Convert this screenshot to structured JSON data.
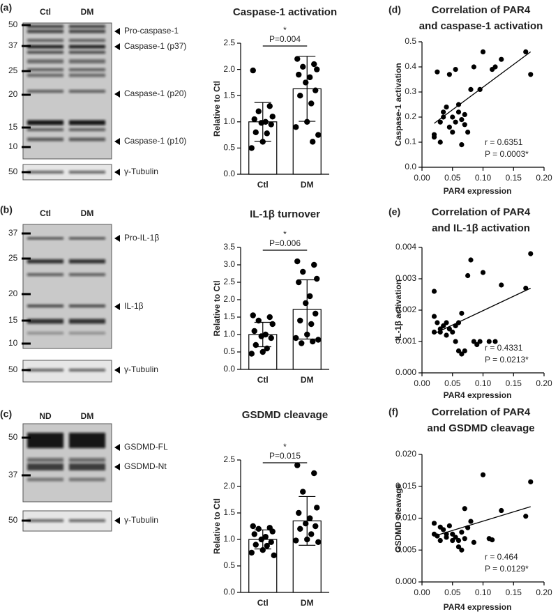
{
  "blots": [
    {
      "panel": "(a)",
      "lanes": [
        "Ctl",
        "DM"
      ],
      "markers": [
        50,
        37,
        25,
        20,
        15,
        10
      ],
      "bands": [
        "Pro-caspase-1",
        "Caspase-1 (p37)",
        "Caspase-1 (p20)",
        "Caspase-1 (p10)"
      ],
      "loading_marker": 50,
      "loading_control": "γ-Tubulin"
    },
    {
      "panel": "(b)",
      "lanes": [
        "Ctl",
        "DM"
      ],
      "markers": [
        37,
        25,
        20,
        15,
        10
      ],
      "bands": [
        "Pro-IL-1β",
        "IL-1β"
      ],
      "loading_marker": 50,
      "loading_control": "γ-Tubulin"
    },
    {
      "panel": "(c)",
      "lanes": [
        "ND",
        "DM"
      ],
      "markers": [
        50,
        37
      ],
      "bands": [
        "GSDMD-FL",
        "GSDMD-Nt"
      ],
      "loading_marker": 50,
      "loading_control": "γ-Tubulin"
    }
  ],
  "chart_data": [
    {
      "type": "bar",
      "title": "Caspase-1 activation",
      "y_label": "Relative to Ctl",
      "categories": [
        "Ctl",
        "DM"
      ],
      "values": [
        1.0,
        1.63
      ],
      "errors": [
        0.37,
        0.62
      ],
      "points": [
        [
          1.98,
          1.3,
          1.2,
          1.1,
          1.05,
          1.0,
          0.98,
          0.95,
          0.8,
          0.78,
          0.62,
          0.5
        ],
        [
          2.2,
          2.1,
          2.05,
          2.0,
          1.9,
          1.85,
          1.75,
          1.6,
          1.5,
          1.35,
          1.0,
          0.9,
          0.75,
          0.62
        ]
      ],
      "significance": "*",
      "p_label": "P=0.004",
      "color": "#ffffff",
      "ylim": [
        0,
        2.5
      ],
      "yticks": [
        {
          "value": 0,
          "label": "0.0"
        },
        0.5,
        {
          "value": 1,
          "label": "1.0"
        },
        1.5,
        {
          "value": 2,
          "label": "2.0"
        },
        2.5
      ]
    },
    {
      "type": "bar",
      "title": "IL-1β turnover",
      "y_label": "Relative to Ctl",
      "categories": [
        "Ctl",
        "DM"
      ],
      "values": [
        1.0,
        1.72
      ],
      "errors": [
        0.35,
        0.85
      ],
      "points": [
        [
          1.55,
          1.5,
          1.4,
          1.3,
          1.1,
          1.0,
          0.95,
          0.9,
          0.7,
          0.6,
          0.5,
          0.45
        ],
        [
          3.1,
          3.0,
          2.8,
          2.6,
          2.5,
          2.1,
          1.9,
          1.6,
          1.4,
          1.3,
          1.0,
          0.9,
          0.85,
          0.8,
          0.75
        ]
      ],
      "significance": "*",
      "p_label": "P=0.006",
      "color": "#ffffff",
      "ylim": [
        0,
        3.5
      ],
      "yticks": [
        {
          "value": 0,
          "label": "0.0"
        },
        0.5,
        {
          "value": 1,
          "label": "1.0"
        },
        1.5,
        {
          "value": 2,
          "label": "2.0"
        },
        2.5,
        {
          "value": 3,
          "label": "3.0"
        },
        3.5
      ]
    },
    {
      "type": "bar",
      "title": "GSDMD cleavage",
      "y_label": "Relative to Ctl",
      "categories": [
        "Ctl",
        "DM"
      ],
      "values": [
        1.0,
        1.35
      ],
      "errors": [
        0.18,
        0.46
      ],
      "points": [
        [
          1.25,
          1.22,
          1.2,
          1.15,
          1.1,
          1.05,
          1.0,
          0.95,
          0.9,
          0.88,
          0.8,
          0.75,
          0.7
        ],
        [
          2.4,
          2.25,
          1.9,
          1.6,
          1.5,
          1.4,
          1.3,
          1.25,
          1.2,
          1.1,
          1.0,
          0.98,
          0.95
        ]
      ],
      "significance": "*",
      "p_label": "P=0.015",
      "color": "#ffffff",
      "ylim": [
        0,
        2.5
      ],
      "yticks": [
        {
          "value": 0,
          "label": "0.0"
        },
        0.5,
        {
          "value": 1,
          "label": "1.0"
        },
        1.5,
        {
          "value": 2,
          "label": "2.0"
        },
        2.5
      ]
    },
    {
      "type": "scatter",
      "panel": "(d)",
      "title": [
        "Correlation of PAR4",
        "and caspase-1 activation"
      ],
      "x_label": "PAR4 expression",
      "y_label": "Caspase-1 activation",
      "x": [
        0.02,
        0.02,
        0.025,
        0.03,
        0.03,
        0.035,
        0.035,
        0.04,
        0.045,
        0.05,
        0.05,
        0.055,
        0.055,
        0.06,
        0.06,
        0.065,
        0.065,
        0.07,
        0.07,
        0.075,
        0.08,
        0.085,
        0.095,
        0.1,
        0.115,
        0.12,
        0.13,
        0.17,
        0.178,
        0.045
      ],
      "y": [
        0.13,
        0.12,
        0.38,
        0.1,
        0.18,
        0.22,
        0.2,
        0.24,
        0.37,
        0.2,
        0.14,
        0.18,
        0.39,
        0.25,
        0.22,
        0.19,
        0.09,
        0.21,
        0.17,
        0.14,
        0.31,
        0.4,
        0.31,
        0.46,
        0.39,
        0.4,
        0.43,
        0.46,
        0.37,
        0.16
      ],
      "fit": {
        "x": [
          0.02,
          0.178
        ],
        "y": [
          0.175,
          0.46
        ]
      },
      "stats": [
        "r  = 0.6351",
        "P = 0.0003*"
      ],
      "color": "#000000",
      "xlim": [
        0,
        0.2
      ],
      "xticks": [
        {
          "value": 0,
          "label": "0.00"
        },
        0.05,
        {
          "value": 0.1,
          "label": "0.10"
        },
        0.15,
        {
          "value": 0.2,
          "label": "0.20"
        }
      ],
      "ylim": [
        0,
        0.5
      ],
      "yticks": [
        {
          "value": 0,
          "label": "0.0"
        },
        0.1,
        0.2,
        0.3,
        0.4,
        0.5
      ]
    },
    {
      "type": "scatter",
      "panel": "(e)",
      "title": [
        "Correlation of PAR4",
        "and IL-1β activation"
      ],
      "x_label": "PAR4 expression",
      "y_label": "IL-1β activation",
      "x": [
        0.02,
        0.02,
        0.02,
        0.025,
        0.03,
        0.03,
        0.035,
        0.04,
        0.04,
        0.045,
        0.05,
        0.055,
        0.055,
        0.06,
        0.06,
        0.065,
        0.065,
        0.07,
        0.075,
        0.08,
        0.085,
        0.09,
        0.095,
        0.1,
        0.11,
        0.12,
        0.13,
        0.17,
        0.178
      ],
      "y": [
        0.0026,
        0.0018,
        0.0013,
        0.0016,
        0.0013,
        0.0014,
        0.0015,
        0.0016,
        0.0012,
        0.0014,
        0.0013,
        0.0015,
        0.001,
        0.0016,
        0.0007,
        0.0019,
        0.0006,
        0.0007,
        0.0031,
        0.0036,
        0.001,
        0.0009,
        0.001,
        0.0032,
        0.001,
        0.001,
        0.0028,
        0.0027,
        0.0038
      ],
      "fit": {
        "x": [
          0.02,
          0.178
        ],
        "y": [
          0.00125,
          0.0027
        ]
      },
      "stats": [
        "r  = 0.4331",
        "P = 0.0213*"
      ],
      "color": "#000000",
      "xlim": [
        0,
        0.2
      ],
      "xticks": [
        {
          "value": 0,
          "label": "0.00"
        },
        0.05,
        {
          "value": 0.1,
          "label": "0.10"
        },
        0.15,
        {
          "value": 0.2,
          "label": "0.20"
        }
      ],
      "ylim": [
        0,
        0.004
      ],
      "yticks": [
        {
          "value": 0,
          "label": "0.000"
        },
        0.001,
        0.002,
        0.003,
        0.004
      ]
    },
    {
      "type": "scatter",
      "panel": "(f)",
      "title": [
        "Correlation of PAR4",
        "and GSDMD cleavage"
      ],
      "x_label": "PAR4 expression",
      "y_label": "GSDMD cleavage",
      "x": [
        0.02,
        0.02,
        0.025,
        0.03,
        0.03,
        0.035,
        0.04,
        0.04,
        0.045,
        0.05,
        0.05,
        0.055,
        0.06,
        0.06,
        0.065,
        0.065,
        0.07,
        0.07,
        0.075,
        0.08,
        0.085,
        0.1,
        0.11,
        0.115,
        0.13,
        0.17,
        0.178
      ],
      "y": [
        0.0092,
        0.0075,
        0.0072,
        0.0086,
        0.0065,
        0.0082,
        0.0075,
        0.007,
        0.0088,
        0.0075,
        0.0065,
        0.007,
        0.0065,
        0.0055,
        0.0078,
        0.005,
        0.0068,
        0.0115,
        0.0085,
        0.0095,
        0.0062,
        0.0168,
        0.0068,
        0.0066,
        0.0112,
        0.0103,
        0.0157
      ],
      "fit": {
        "x": [
          0.02,
          0.178
        ],
        "y": [
          0.0072,
          0.0118
        ]
      },
      "stats": [
        "r  = 0.464",
        "P = 0.0129*"
      ],
      "color": "#000000",
      "xlim": [
        0,
        0.2
      ],
      "xticks": [
        {
          "value": 0,
          "label": "0.00"
        },
        0.05,
        {
          "value": 0.1,
          "label": "0.10"
        },
        0.15,
        {
          "value": 0.2,
          "label": "0.20"
        }
      ],
      "ylim": [
        0,
        0.02
      ],
      "yticks": [
        {
          "value": 0,
          "label": "0.000"
        },
        0.005,
        {
          "value": 0.01,
          "label": "0.010"
        },
        0.015,
        {
          "value": 0.02,
          "label": "0.020"
        }
      ]
    }
  ]
}
